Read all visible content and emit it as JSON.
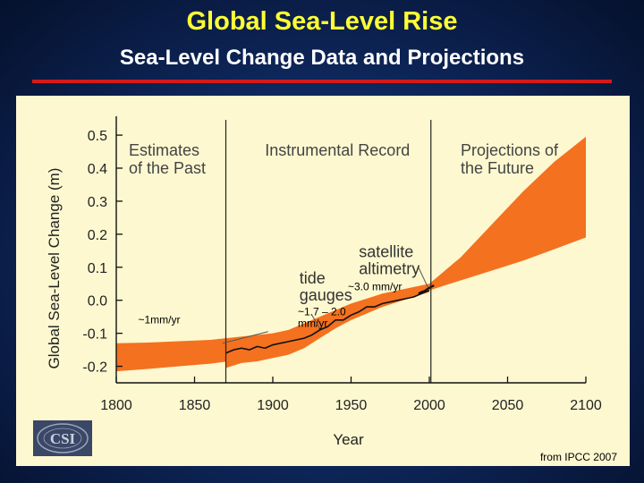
{
  "slide": {
    "title": "Global Sea-Level Rise",
    "subtitle": "Sea-Level Change Data and Projections",
    "credit": "from IPCC 2007",
    "logo_text": "CSI"
  },
  "colors": {
    "background": "#0d2456",
    "title": "#ffff33",
    "divider": "#d41a1a",
    "panel": "#fdf8d0",
    "band": "#f4711f",
    "line": "#111111"
  },
  "chart_data": {
    "type": "line",
    "xlabel": "Year",
    "ylabel": "Global Sea-Level Change (m)",
    "xlim": [
      1800,
      2100
    ],
    "ylim": [
      -0.25,
      0.53
    ],
    "xticks": [
      1800,
      1850,
      1900,
      1950,
      2000,
      2050,
      2100
    ],
    "xtick_labels": [
      "1800",
      "1850",
      "1900",
      "1950",
      "2000",
      "2050",
      "2100"
    ],
    "yticks": [
      -0.2,
      -0.1,
      0.0,
      0.1,
      0.2,
      0.3,
      0.4,
      0.5
    ],
    "ytick_labels": [
      "-0.2",
      "-0.1",
      "0.0",
      "0.1",
      "0.2",
      "0.3",
      "0.4",
      "0.5"
    ],
    "grid": false,
    "period_dividers": [
      1870,
      2001
    ],
    "section_labels": [
      {
        "lines": [
          "Estimates",
          "of the Past"
        ],
        "x": 1808,
        "y": 0.47
      },
      {
        "lines": [
          "Instrumental Record"
        ],
        "x": 1895,
        "y": 0.47
      },
      {
        "lines": [
          "Projections of",
          "the Future"
        ],
        "x": 2020,
        "y": 0.47
      }
    ],
    "annotations": [
      {
        "lines": [
          "~1mm/yr"
        ],
        "x": 1814,
        "y": -0.07,
        "style": "small"
      },
      {
        "lines": [
          "~1.7 – 2.0",
          "mm/yr"
        ],
        "x": 1916,
        "y": -0.045,
        "style": "small"
      },
      {
        "lines": [
          "~3.0 mm/yr"
        ],
        "x": 1948,
        "y": 0.03,
        "style": "small"
      },
      {
        "lines": [
          "tide",
          "gauges"
        ],
        "x": 1917,
        "y": 0.05,
        "style": "large"
      },
      {
        "lines": [
          "satellite",
          "altimetry"
        ],
        "x": 1955,
        "y": 0.13,
        "style": "large"
      }
    ],
    "series": [
      {
        "kind": "band",
        "x": [
          1800,
          1820,
          1840,
          1860,
          1870
        ],
        "lower": [
          -0.215,
          -0.208,
          -0.2,
          -0.192,
          -0.186
        ],
        "upper": [
          -0.13,
          -0.128,
          -0.124,
          -0.12,
          -0.115
        ]
      },
      {
        "kind": "band",
        "x": [
          1870,
          1880,
          1890,
          1900,
          1910,
          1920,
          1930,
          1940,
          1950,
          1960,
          1970,
          1980,
          1990,
          2000
        ],
        "lower": [
          -0.205,
          -0.19,
          -0.185,
          -0.175,
          -0.165,
          -0.145,
          -0.115,
          -0.085,
          -0.06,
          -0.04,
          -0.02,
          -0.005,
          0.01,
          0.025
        ],
        "upper": [
          -0.115,
          -0.11,
          -0.105,
          -0.1,
          -0.09,
          -0.07,
          -0.05,
          -0.03,
          -0.01,
          0.005,
          0.02,
          0.03,
          0.04,
          0.05
        ]
      },
      {
        "kind": "band",
        "x": [
          2000,
          2020,
          2040,
          2060,
          2080,
          2100
        ],
        "lower": [
          0.03,
          0.06,
          0.09,
          0.12,
          0.155,
          0.19
        ],
        "upper": [
          0.05,
          0.13,
          0.23,
          0.33,
          0.42,
          0.495
        ]
      },
      {
        "kind": "line",
        "x": [
          1870,
          1875,
          1880,
          1885,
          1890,
          1895,
          1900,
          1905,
          1910,
          1915,
          1920,
          1925,
          1930,
          1935,
          1940,
          1945,
          1950,
          1955,
          1960,
          1965,
          1970,
          1975,
          1980,
          1985,
          1990,
          1995,
          2000
        ],
        "y": [
          -0.16,
          -0.15,
          -0.145,
          -0.15,
          -0.14,
          -0.145,
          -0.135,
          -0.13,
          -0.125,
          -0.12,
          -0.115,
          -0.105,
          -0.09,
          -0.08,
          -0.06,
          -0.06,
          -0.045,
          -0.035,
          -0.02,
          -0.02,
          -0.01,
          -0.005,
          0.0,
          0.005,
          0.01,
          0.02,
          0.03
        ]
      },
      {
        "kind": "line",
        "x": [
          1993,
          1995,
          1997,
          1999,
          2001,
          2003
        ],
        "y": [
          0.02,
          0.025,
          0.028,
          0.035,
          0.04,
          0.045
        ]
      }
    ]
  }
}
